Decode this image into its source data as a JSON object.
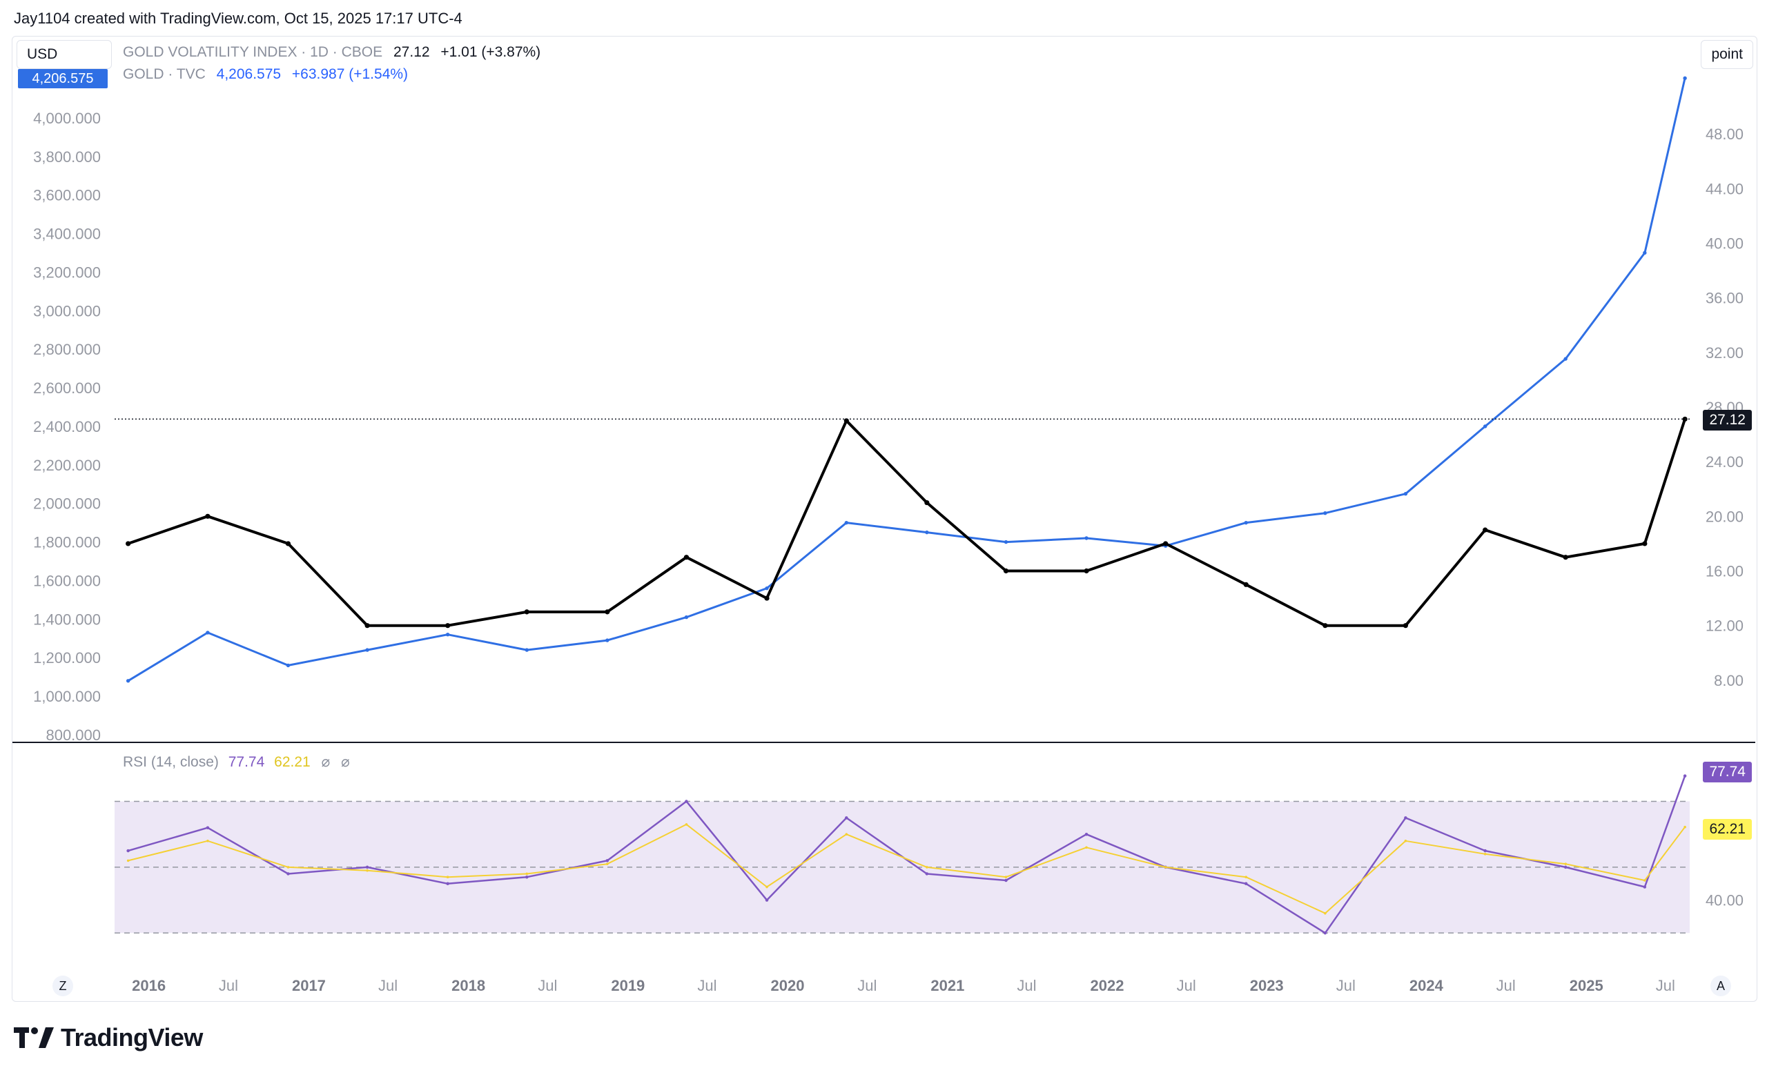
{
  "header": {
    "credit": "Jay1104 created with TradingView.com, Oct 15, 2025 17:17 UTC-4"
  },
  "currency_label": "USD",
  "scale_mode_label": "point",
  "legend": {
    "vix": {
      "name": "GOLD VOLATILITY INDEX · 1D · CBOE",
      "last": "27.12",
      "change": "+1.01 (+3.87%)"
    },
    "gold": {
      "name": "GOLD · TVC",
      "last": "4,206.575",
      "change": "+63.987 (+1.54%)"
    }
  },
  "price_tag": "4,206.575",
  "vix_last_tag": "27.12",
  "rsi": {
    "label": "RSI (14, close)",
    "value": "77.74",
    "ma_value": "62.21",
    "symbol_a": "⌀",
    "symbol_b": "⌀"
  },
  "buttons": {
    "left_corner": "Z",
    "right_corner": "A"
  },
  "brand": "TradingView",
  "colors": {
    "gold": "#2f6fe4",
    "vix": "#000000",
    "rsi": "#7e57c2",
    "rsi_ma": "#f5d033",
    "rsi_band": "#ede7f6",
    "accent": "#2962ff"
  },
  "chart_data": [
    {
      "type": "line",
      "x_tick_labels": [
        "2016",
        "Jul",
        "2017",
        "Jul",
        "2018",
        "Jul",
        "2019",
        "Jul",
        "2020",
        "Jul",
        "2021",
        "Jul",
        "2022",
        "Jul",
        "2023",
        "Jul",
        "2024",
        "Jul",
        "2025",
        "Jul"
      ],
      "x": [
        "2016-01",
        "2016-07",
        "2017-01",
        "2017-07",
        "2018-01",
        "2018-07",
        "2019-01",
        "2019-07",
        "2020-01",
        "2020-07",
        "2021-01",
        "2021-07",
        "2022-01",
        "2022-07",
        "2023-01",
        "2023-07",
        "2024-01",
        "2024-07",
        "2025-01",
        "2025-07",
        "2025-10"
      ],
      "left_axis": {
        "ticks": [
          "800.000",
          "1,000.000",
          "1,200.000",
          "1,400.000",
          "1,600.000",
          "1,800.000",
          "2,000.000",
          "2,200.000",
          "2,400.000",
          "2,600.000",
          "2,800.000",
          "3,000.000",
          "3,200.000",
          "3,400.000",
          "3,600.000",
          "3,800.000",
          "4,000.000"
        ],
        "ylim": [
          800,
          4200
        ]
      },
      "right_axis": {
        "ticks": [
          "8.00",
          "12.00",
          "16.00",
          "20.00",
          "24.00",
          "28.00",
          "32.00",
          "36.00",
          "40.00",
          "44.00",
          "48.00"
        ],
        "ylim": [
          4,
          52
        ]
      },
      "series": [
        {
          "name": "GOLD · TVC",
          "axis": "left",
          "values": [
            1080,
            1330,
            1160,
            1240,
            1320,
            1240,
            1290,
            1410,
            1560,
            1900,
            1850,
            1800,
            1820,
            1780,
            1900,
            1950,
            2050,
            2400,
            2750,
            3300,
            4206
          ]
        },
        {
          "name": "GOLD VOLATILITY INDEX",
          "axis": "right",
          "values": [
            18,
            20,
            18,
            12,
            12,
            13,
            13,
            17,
            14,
            27,
            21,
            16,
            16,
            18,
            15,
            12,
            12,
            19,
            17,
            18,
            27.12
          ]
        }
      ],
      "last_price_line": 27.12
    },
    {
      "type": "line",
      "title": "RSI (14, close)",
      "y_tick_labels": [
        "40.00"
      ],
      "ylim": [
        20,
        85
      ],
      "bands": [
        30,
        50,
        70
      ],
      "x": [
        "2016-01",
        "2016-07",
        "2017-01",
        "2017-07",
        "2018-01",
        "2018-07",
        "2019-01",
        "2019-07",
        "2020-01",
        "2020-07",
        "2021-01",
        "2021-07",
        "2022-01",
        "2022-07",
        "2023-01",
        "2023-07",
        "2024-01",
        "2024-07",
        "2025-01",
        "2025-07",
        "2025-10"
      ],
      "series": [
        {
          "name": "RSI",
          "values": [
            55,
            62,
            48,
            50,
            45,
            47,
            52,
            70,
            40,
            65,
            48,
            46,
            60,
            50,
            45,
            30,
            65,
            55,
            50,
            44,
            77.74
          ]
        },
        {
          "name": "RSI-based MA",
          "values": [
            52,
            58,
            50,
            49,
            47,
            48,
            51,
            63,
            44,
            60,
            50,
            47,
            56,
            50,
            47,
            36,
            58,
            54,
            51,
            46,
            62.21
          ]
        }
      ]
    }
  ]
}
